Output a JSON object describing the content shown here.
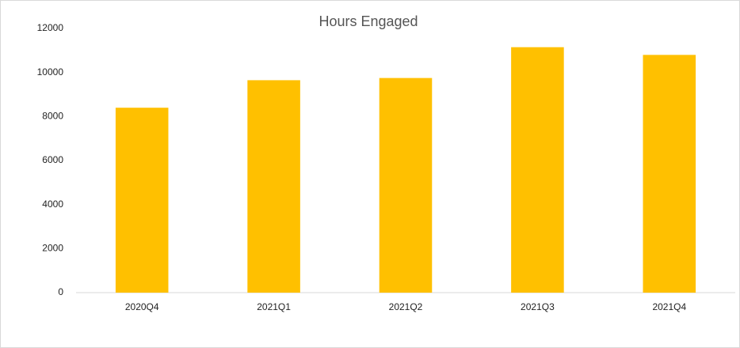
{
  "chart_data": {
    "type": "bar",
    "title": "Hours Engaged",
    "categories": [
      "2020Q4",
      "2021Q1",
      "2021Q2",
      "2021Q3",
      "2021Q4"
    ],
    "values": [
      8400,
      9650,
      9750,
      11150,
      10800
    ],
    "color": "#ffc000",
    "ylim": [
      0,
      12000
    ],
    "yticks": [
      0,
      2000,
      4000,
      6000,
      8000,
      10000,
      12000
    ],
    "grid": false
  }
}
